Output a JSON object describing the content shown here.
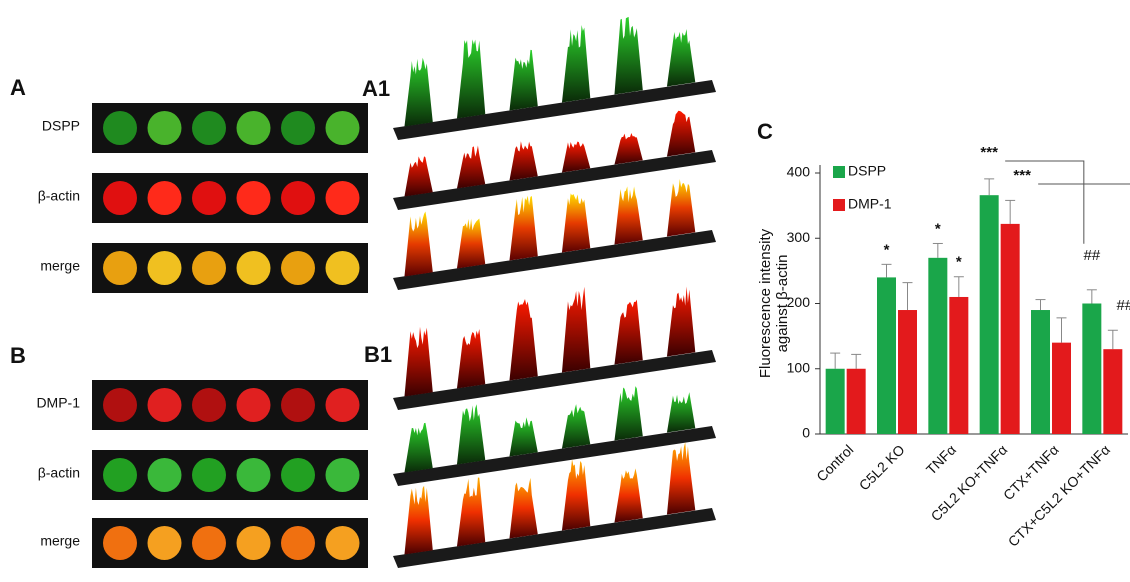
{
  "panels": {
    "A": "A",
    "A1": "A1",
    "B": "B",
    "B1": "B1",
    "C": "C"
  },
  "rows_a": [
    "DSPP",
    "β-actin",
    "merge"
  ],
  "rows_b": [
    "DMP-1",
    "β-actin",
    "merge"
  ],
  "chart_data": {
    "type": "bar",
    "ylabel": [
      "Fluorescence intensity",
      "against β-actin"
    ],
    "categories": [
      "Control",
      "C5L2 KO",
      "TNFα",
      "C5L2 KO+TNFα",
      "CTX+TNFα",
      "CTX+C5L2 KO+TNFα"
    ],
    "series": [
      {
        "name": "DSPP",
        "color": "#1aa64a",
        "values": [
          100,
          240,
          270,
          366,
          190,
          200
        ],
        "errors": [
          24,
          20,
          22,
          25,
          16,
          21
        ]
      },
      {
        "name": "DMP-1",
        "color": "#e31a1c",
        "values": [
          100,
          190,
          210,
          322,
          140,
          130
        ],
        "errors": [
          22,
          42,
          31,
          36,
          38,
          29
        ]
      }
    ],
    "ylim": [
      0,
      400
    ],
    "yticks": [
      0,
      100,
      200,
      300,
      400
    ],
    "annotations": [
      {
        "text": "*",
        "series": "DSPP",
        "category": "C5L2 KO"
      },
      {
        "text": "*",
        "series": "DSPP",
        "category": "TNFα"
      },
      {
        "text": "*",
        "series": "DMP-1",
        "category": "TNFα"
      },
      {
        "text": "***",
        "series": "DSPP",
        "category": "C5L2 KO+TNFα"
      },
      {
        "text": "***",
        "series": "DMP-1",
        "category": "C5L2 KO+TNFα"
      },
      {
        "text": "##",
        "series": "DSPP",
        "category": "CTX+C5L2 KO+TNFα"
      },
      {
        "text": "##",
        "series": "DMP-1",
        "category": "CTX+C5L2 KO+TNFα"
      }
    ]
  }
}
